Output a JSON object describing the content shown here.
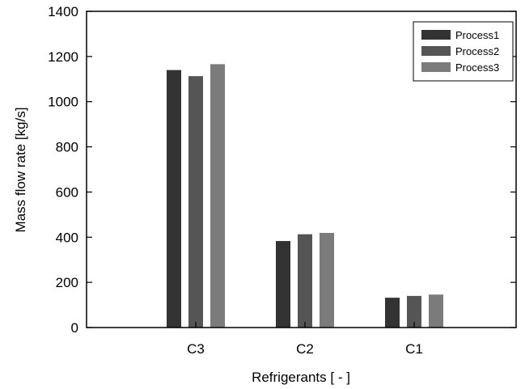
{
  "chart_data": {
    "type": "bar",
    "categories": [
      "C3",
      "C2",
      "C1"
    ],
    "series": [
      {
        "name": "Process1",
        "values": [
          1140,
          383,
          132
        ],
        "color": "#333333"
      },
      {
        "name": "Process2",
        "values": [
          1113,
          413,
          140
        ],
        "color": "#555555"
      },
      {
        "name": "Process3",
        "values": [
          1166,
          419,
          146
        ],
        "color": "#7b7b7b"
      }
    ],
    "xlabel": "Refrigerants [ - ]",
    "ylabel": "Mass flow rate [kg/s]",
    "ylim": [
      0,
      1400
    ],
    "yticks": [
      "0",
      "200",
      "400",
      "600",
      "800",
      "1000",
      "1200",
      "1400"
    ],
    "grid": false,
    "legend_position": "top-right"
  }
}
